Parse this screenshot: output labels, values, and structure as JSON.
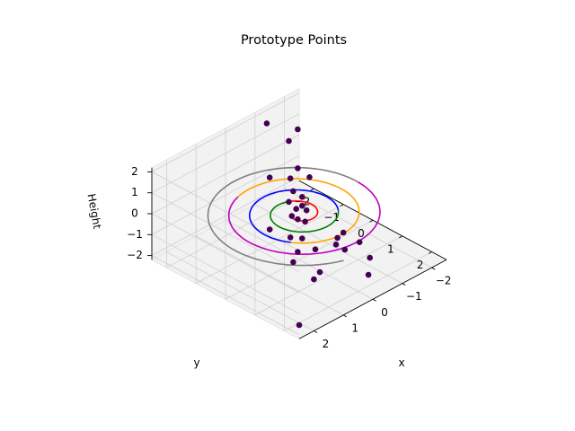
{
  "chart_data": {
    "type": "scatter",
    "projection": "3d",
    "view": "azimuth 45°, elevation ~48°",
    "title": "Prototype Points",
    "xlabel": "x",
    "ylabel": "y",
    "zlabel": "Height",
    "xlim": [
      -2.5,
      2.5
    ],
    "ylim": [
      -2.5,
      2.5
    ],
    "zlim": [
      -2.2,
      2.2
    ],
    "xticks": [
      -2,
      -1,
      0,
      1,
      2
    ],
    "yticks": [
      -2,
      -1,
      0,
      1,
      2
    ],
    "zticks": [
      -2,
      -1,
      0,
      1,
      2
    ],
    "xtick_labels": [
      "−2",
      "−1",
      "0",
      "1",
      "2"
    ],
    "ytick_labels": [
      "−2",
      "−1",
      "0",
      "1",
      "2"
    ],
    "ztick_labels": [
      "−2",
      "−1",
      "0",
      "1",
      "2"
    ],
    "grid": true,
    "pane_color": "#f2f2f2",
    "spiral": {
      "z": 0,
      "radius_start": 0.25,
      "radius_growth_per_turn": 0.5,
      "turns": 4.2,
      "segment_colors": [
        "#ff0000",
        "#008000",
        "#0000ff",
        "#ffa500",
        "#bf00bf",
        "#808080"
      ]
    },
    "point_color": "#440154",
    "points": [
      {
        "x": -1.25,
        "y": -2.35,
        "z": 1.6
      },
      {
        "x": -1.2,
        "y": -1.55,
        "z": 1.4
      },
      {
        "x": -2.05,
        "y": -2.1,
        "z": 0.9
      },
      {
        "x": -0.95,
        "y": -1.0,
        "z": 0.7
      },
      {
        "x": -0.05,
        "y": -1.05,
        "z": 0.9
      },
      {
        "x": -0.25,
        "y": -0.45,
        "z": 0.55
      },
      {
        "x": -1.1,
        "y": -0.75,
        "z": 0.35
      },
      {
        "x": -0.9,
        "y": -1.2,
        "z": 0.1
      },
      {
        "x": -0.45,
        "y": -0.35,
        "z": 0.2
      },
      {
        "x": -0.3,
        "y": -0.2,
        "z": 0.0
      },
      {
        "x": -0.1,
        "y": -0.2,
        "z": 0.0
      },
      {
        "x": -0.3,
        "y": -0.05,
        "z": -0.1
      },
      {
        "x": 0.0,
        "y": -0.35,
        "z": 0.3
      },
      {
        "x": 0.2,
        "y": 0.15,
        "z": 0.0
      },
      {
        "x": 0.15,
        "y": 0.35,
        "z": 0.0
      },
      {
        "x": 0.2,
        "y": -0.05,
        "z": 0.0
      },
      {
        "x": 1.0,
        "y": 0.0,
        "z": 0.0
      },
      {
        "x": 0.9,
        "y": 0.6,
        "z": 0.0
      },
      {
        "x": 0.6,
        "y": 0.7,
        "z": -0.2
      },
      {
        "x": 1.1,
        "y": 1.05,
        "z": -0.2
      },
      {
        "x": 1.05,
        "y": 1.6,
        "z": 0.3
      },
      {
        "x": 0.15,
        "y": 1.4,
        "z": -0.3
      },
      {
        "x": -0.15,
        "y": 1.15,
        "z": -0.4
      },
      {
        "x": -0.75,
        "y": 0.75,
        "z": -0.9
      },
      {
        "x": -0.3,
        "y": 1.25,
        "z": -1.0
      },
      {
        "x": -0.4,
        "y": 2.0,
        "z": -0.9
      },
      {
        "x": -1.25,
        "y": 0.8,
        "z": -1.7
      },
      {
        "x": 1.5,
        "y": 1.3,
        "z": -0.2
      },
      {
        "x": 1.5,
        "y": 2.2,
        "z": 0.0
      },
      {
        "x": 0.9,
        "y": 1.4,
        "z": -1.4
      },
      {
        "x": -0.3,
        "y": 2.05,
        "z": -1.6
      },
      {
        "x": 2.2,
        "y": 2.2,
        "z": -2.0
      }
    ]
  }
}
